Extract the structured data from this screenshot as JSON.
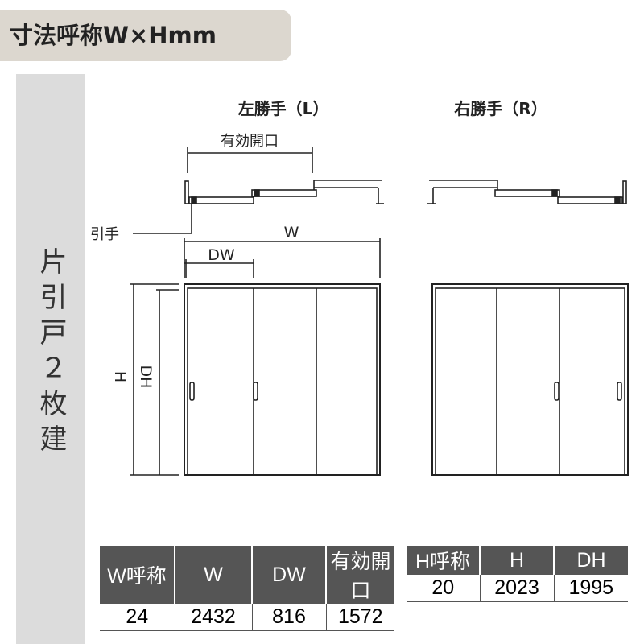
{
  "header": {
    "title": "寸法呼称W×Hmm"
  },
  "sidebar": {
    "label": "片引戸２枚建"
  },
  "diagram": {
    "left_title": "左勝手（L）",
    "right_title": "右勝手（R）",
    "effective_opening_label": "有効開口",
    "handle_label": "引手",
    "w_label": "W",
    "dw_label": "DW",
    "h_label": "H",
    "dh_label": "DH"
  },
  "table_width": {
    "headers": [
      "W呼称",
      "W",
      "DW",
      "有効開口"
    ],
    "values": [
      "24",
      "2432",
      "816",
      "1572"
    ]
  },
  "table_height": {
    "headers": [
      "H呼称",
      "H",
      "DH"
    ],
    "values": [
      "20",
      "2023",
      "1995"
    ]
  }
}
